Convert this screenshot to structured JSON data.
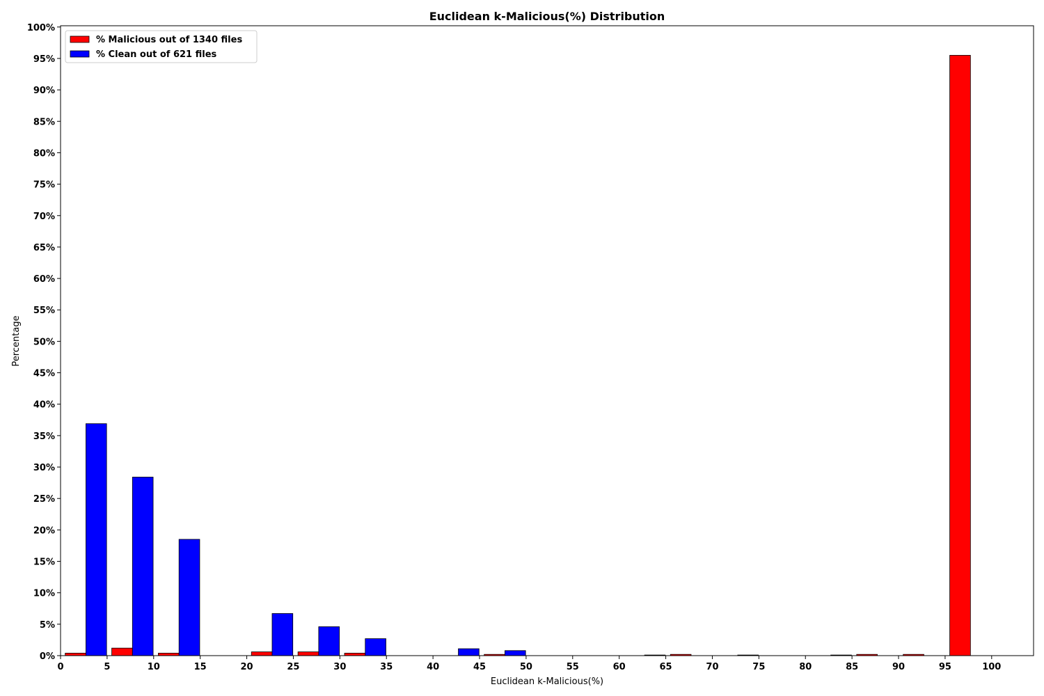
{
  "chart_data": {
    "type": "bar",
    "title": "Euclidean k-Malicious(%) Distribution",
    "xlabel": "Euclidean k-Malicious(%)",
    "ylabel": "Percentage",
    "xlim": [
      0,
      104.5
    ],
    "ylim": [
      0,
      100.2
    ],
    "bin_width": 5,
    "x_ticks": [
      0,
      5,
      10,
      15,
      20,
      25,
      30,
      35,
      40,
      45,
      50,
      55,
      60,
      65,
      70,
      75,
      80,
      85,
      90,
      95,
      100
    ],
    "x_tick_labels": [
      "0",
      "5",
      "10",
      "15",
      "20",
      "25",
      "30",
      "35",
      "40",
      "45",
      "50",
      "55",
      "60",
      "65",
      "70",
      "75",
      "80",
      "85",
      "90",
      "95",
      "100"
    ],
    "y_ticks": [
      0,
      5,
      10,
      15,
      20,
      25,
      30,
      35,
      40,
      45,
      50,
      55,
      60,
      65,
      70,
      75,
      80,
      85,
      90,
      95,
      100
    ],
    "y_tick_labels": [
      "0%",
      "5%",
      "10%",
      "15%",
      "20%",
      "25%",
      "30%",
      "35%",
      "40%",
      "45%",
      "50%",
      "55%",
      "60%",
      "65%",
      "70%",
      "75%",
      "80%",
      "85%",
      "90%",
      "95%",
      "100%"
    ],
    "bins": [
      0,
      5,
      10,
      15,
      20,
      25,
      30,
      35,
      40,
      45,
      50,
      55,
      60,
      65,
      70,
      75,
      80,
      85,
      90,
      95,
      100
    ],
    "grid": false,
    "legend_position": "top-left",
    "series": [
      {
        "name": "% Malicious out of 1340 files",
        "color": "#ff0000",
        "values": [
          0.4,
          1.2,
          0.4,
          0,
          0.6,
          0.6,
          0.4,
          0,
          0,
          0.2,
          0,
          0,
          0,
          0.2,
          0,
          0,
          0,
          0.2,
          0.2,
          95.5,
          0
        ]
      },
      {
        "name": "% Clean out of 621 files",
        "color": "#0000ff",
        "values": [
          36.9,
          28.4,
          18.5,
          0,
          6.7,
          4.6,
          2.7,
          0,
          1.1,
          0.8,
          0,
          0,
          0.1,
          0,
          0.1,
          0,
          0.1,
          0,
          0,
          0,
          0
        ]
      }
    ]
  }
}
